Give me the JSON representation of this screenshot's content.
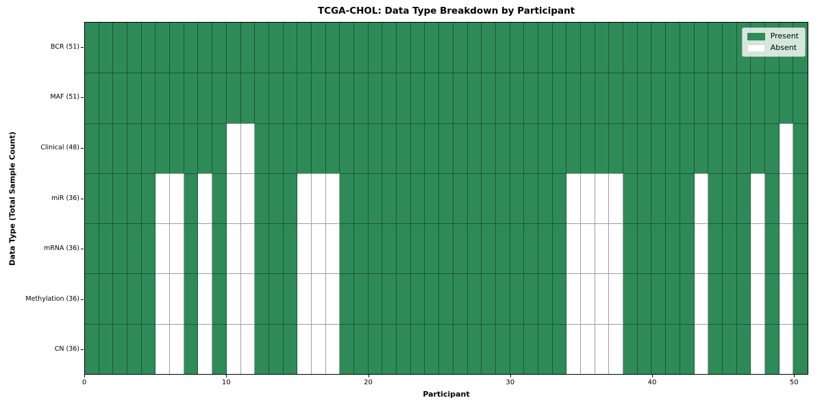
{
  "chart_data": {
    "type": "heatmap",
    "title": "TCGA-CHOL: Data Type Breakdown by Participant",
    "xlabel": "Participant",
    "ylabel": "Data Type (Total Sample Count)",
    "n_participants": 51,
    "x_range": [
      0,
      51
    ],
    "x_ticks": [
      0,
      10,
      20,
      30,
      40,
      50
    ],
    "rows": [
      {
        "label": "BCR (51)",
        "total": 51,
        "absent_participants": []
      },
      {
        "label": "MAF (51)",
        "total": 51,
        "absent_participants": []
      },
      {
        "label": "Clinical (48)",
        "total": 48,
        "absent_participants": [
          10,
          11,
          49
        ]
      },
      {
        "label": "miR (36)",
        "total": 36,
        "absent_participants": [
          5,
          6,
          8,
          10,
          11,
          15,
          16,
          17,
          34,
          35,
          36,
          37,
          43,
          47,
          49
        ]
      },
      {
        "label": "mRNA (36)",
        "total": 36,
        "absent_participants": [
          5,
          6,
          8,
          10,
          11,
          15,
          16,
          17,
          34,
          35,
          36,
          37,
          43,
          47,
          49
        ]
      },
      {
        "label": "Methylation (36)",
        "total": 36,
        "absent_participants": [
          5,
          6,
          8,
          10,
          11,
          15,
          16,
          17,
          34,
          35,
          36,
          37,
          43,
          47,
          49
        ]
      },
      {
        "label": "CN (36)",
        "total": 36,
        "absent_participants": [
          5,
          6,
          8,
          10,
          11,
          15,
          16,
          17,
          34,
          35,
          36,
          37,
          43,
          47,
          49
        ]
      }
    ],
    "legend": [
      {
        "label": "Present",
        "color": "#2e8b57"
      },
      {
        "label": "Absent",
        "color": "#ffffff"
      }
    ],
    "legend_position": "upper right",
    "colors": {
      "present": "#2e8b57",
      "absent": "#ffffff",
      "gridline": "rgba(0,0,0,0.38)",
      "axis_border": "#000000"
    }
  }
}
